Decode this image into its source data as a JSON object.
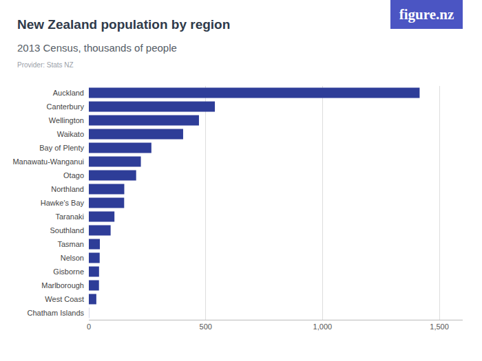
{
  "chart_data": {
    "type": "bar",
    "title": "New Zealand population by region",
    "subtitle": "2013 Census, thousands of people",
    "source": "Provider: Stats NZ",
    "logo": "figure.nz",
    "orientation": "horizontal",
    "categories": [
      "Auckland",
      "Canterbury",
      "Wellington",
      "Waikato",
      "Bay of Plenty",
      "Manawatu-Wanganui",
      "Otago",
      "Northland",
      "Hawke's Bay",
      "Taranaki",
      "Southland",
      "Tasman",
      "Nelson",
      "Gisborne",
      "Marlborough",
      "West Coast",
      "Chatham Islands"
    ],
    "values": [
      1415.6,
      539.4,
      471.3,
      403.6,
      267.7,
      222.7,
      202.5,
      151.7,
      151.2,
      109.6,
      93.3,
      47.2,
      46.4,
      43.7,
      43.4,
      32.1,
      0.6
    ],
    "color": "#2e3d98",
    "xlim": [
      0,
      1600
    ],
    "xticks": [
      0,
      500,
      {
        "value": 1000,
        "label": "1,000"
      },
      {
        "value": 1500,
        "label": "1,500"
      }
    ],
    "grid": true
  }
}
